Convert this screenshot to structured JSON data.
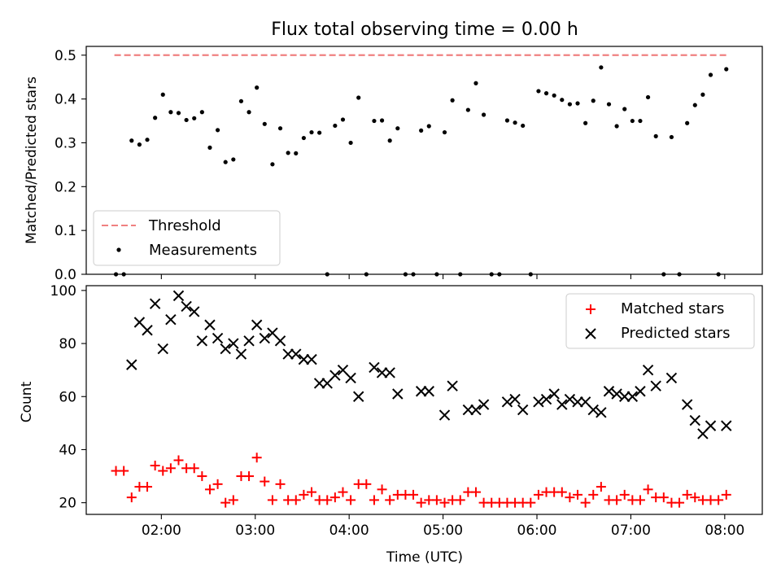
{
  "chart_data": [
    {
      "type": "scatter",
      "title": "Flux total observing time = 0.00 h",
      "xlabel": "",
      "ylabel": "Matched/Predicted stars",
      "xlim": [
        "01:12",
        "08:24"
      ],
      "ylim": [
        0,
        0.52
      ],
      "xticks": [
        "02:00",
        "03:00",
        "04:00",
        "05:00",
        "06:00",
        "07:00",
        "08:00"
      ],
      "yticks": [
        0.0,
        0.1,
        0.2,
        0.3,
        0.4,
        0.5
      ],
      "yticks_labels": [
        "0.0",
        "0.1",
        "0.2",
        "0.3",
        "0.4",
        "0.5"
      ],
      "legend_position": "lower-left",
      "series": [
        {
          "name": "Threshold",
          "style": "dashed-line",
          "color": "#f08080",
          "x": [
            "01:30",
            "08:02"
          ],
          "y": [
            0.5,
            0.5
          ]
        },
        {
          "name": "Measurements",
          "style": "dot",
          "color": "#000000",
          "x": [
            "01:31",
            "01:36",
            "01:41",
            "01:46",
            "01:51",
            "01:56",
            "02:01",
            "02:06",
            "02:11",
            "02:16",
            "02:21",
            "02:26",
            "02:31",
            "02:36",
            "02:41",
            "02:46",
            "02:51",
            "02:56",
            "03:01",
            "03:06",
            "03:11",
            "03:16",
            "03:21",
            "03:26",
            "03:31",
            "03:36",
            "03:41",
            "03:46",
            "03:51",
            "03:56",
            "04:01",
            "04:06",
            "04:11",
            "04:16",
            "04:21",
            "04:26",
            "04:31",
            "04:36",
            "04:41",
            "04:46",
            "04:51",
            "04:56",
            "05:01",
            "05:06",
            "05:11",
            "05:16",
            "05:21",
            "05:26",
            "05:31",
            "05:36",
            "05:41",
            "05:46",
            "05:51",
            "05:56",
            "06:01",
            "06:06",
            "06:11",
            "06:16",
            "06:21",
            "06:26",
            "06:31",
            "06:36",
            "06:41",
            "06:46",
            "06:51",
            "06:56",
            "07:01",
            "07:06",
            "07:11",
            "07:16",
            "07:21",
            "07:26",
            "07:31",
            "07:36",
            "07:41",
            "07:46",
            "07:51",
            "07:56",
            "08:01"
          ],
          "y": [
            0.0,
            0.0,
            0.305,
            0.296,
            0.307,
            0.357,
            0.41,
            0.37,
            0.368,
            0.352,
            0.356,
            0.37,
            0.289,
            0.329,
            0.256,
            0.262,
            0.395,
            0.37,
            0.426,
            0.343,
            0.251,
            0.333,
            0.277,
            0.276,
            0.311,
            0.324,
            0.323,
            0.0,
            0.339,
            0.353,
            0.3,
            0.403,
            0.0,
            0.35,
            0.351,
            0.305,
            0.333,
            0.0,
            0.0,
            0.328,
            0.338,
            0.0,
            0.324,
            0.397,
            0.0,
            0.375,
            0.436,
            0.364,
            0.0,
            0.0,
            0.351,
            0.346,
            0.339,
            0.0,
            0.418,
            0.413,
            0.408,
            0.398,
            0.388,
            0.39,
            0.345,
            0.396,
            0.472,
            0.388,
            0.338,
            0.377,
            0.35,
            0.35,
            0.404,
            0.315,
            0.0,
            0.313,
            0.0,
            0.345,
            0.386,
            0.41,
            0.455,
            0.0,
            0.468
          ]
        }
      ]
    },
    {
      "type": "scatter",
      "title": "",
      "xlabel": "Time (UTC)",
      "ylabel": "Count",
      "xlim": [
        "01:12",
        "08:24"
      ],
      "ylim": [
        15.6,
        101.8
      ],
      "xticks": [
        "02:00",
        "03:00",
        "04:00",
        "05:00",
        "06:00",
        "07:00",
        "08:00"
      ],
      "yticks": [
        20,
        40,
        60,
        80,
        100
      ],
      "legend_position": "upper-right",
      "series": [
        {
          "name": "Matched stars",
          "marker": "plus",
          "color": "#ff0000",
          "x": [
            "01:31",
            "01:36",
            "01:41",
            "01:46",
            "01:51",
            "01:56",
            "02:01",
            "02:06",
            "02:11",
            "02:16",
            "02:21",
            "02:26",
            "02:31",
            "02:36",
            "02:41",
            "02:46",
            "02:51",
            "02:56",
            "03:01",
            "03:06",
            "03:11",
            "03:16",
            "03:21",
            "03:26",
            "03:31",
            "03:36",
            "03:41",
            "03:46",
            "03:51",
            "03:56",
            "04:01",
            "04:06",
            "04:11",
            "04:16",
            "04:21",
            "04:26",
            "04:31",
            "04:36",
            "04:41",
            "04:46",
            "04:51",
            "04:56",
            "05:01",
            "05:06",
            "05:11",
            "05:16",
            "05:21",
            "05:26",
            "05:31",
            "05:36",
            "05:41",
            "05:46",
            "05:51",
            "05:56",
            "06:01",
            "06:06",
            "06:11",
            "06:16",
            "06:21",
            "06:26",
            "06:31",
            "06:36",
            "06:41",
            "06:46",
            "06:51",
            "06:56",
            "07:01",
            "07:06",
            "07:11",
            "07:16",
            "07:21",
            "07:26",
            "07:31",
            "07:36",
            "07:41",
            "07:46",
            "07:51",
            "07:56",
            "08:01"
          ],
          "y": [
            32,
            32,
            22,
            26,
            26,
            34,
            32,
            33,
            36,
            33,
            33,
            30,
            25,
            27,
            20,
            21,
            30,
            30,
            37,
            28,
            21,
            27,
            21,
            21,
            23,
            24,
            21,
            21,
            22,
            24,
            21,
            27,
            27,
            21,
            25,
            21,
            23,
            23,
            23,
            20,
            21,
            21,
            20,
            21,
            21,
            24,
            24,
            20,
            20,
            20,
            20,
            20,
            20,
            20,
            23,
            24,
            24,
            24,
            22,
            23,
            20,
            23,
            26,
            21,
            21,
            23,
            21,
            21,
            25,
            22,
            22,
            20,
            20,
            23,
            22,
            21,
            21,
            21,
            23
          ]
        },
        {
          "name": "Predicted stars",
          "marker": "x",
          "color": "#000000",
          "x": [
            "01:41",
            "01:46",
            "01:51",
            "01:56",
            "02:01",
            "02:06",
            "02:11",
            "02:16",
            "02:21",
            "02:26",
            "02:31",
            "02:36",
            "02:41",
            "02:46",
            "02:51",
            "02:56",
            "03:01",
            "03:06",
            "03:11",
            "03:16",
            "03:21",
            "03:26",
            "03:31",
            "03:36",
            "03:41",
            "03:46",
            "03:51",
            "03:56",
            "04:01",
            "04:06",
            "04:16",
            "04:21",
            "04:26",
            "04:31",
            "04:46",
            "04:51",
            "05:01",
            "05:06",
            "05:16",
            "05:21",
            "05:26",
            "05:41",
            "05:46",
            "05:51",
            "06:01",
            "06:06",
            "06:11",
            "06:16",
            "06:21",
            "06:26",
            "06:31",
            "06:36",
            "06:41",
            "06:46",
            "06:51",
            "06:56",
            "07:01",
            "07:06",
            "07:11",
            "07:16",
            "07:26",
            "07:36",
            "07:41",
            "07:46",
            "07:51",
            "08:01"
          ],
          "y": [
            72,
            88,
            85,
            95,
            78,
            89,
            98,
            94,
            92,
            81,
            87,
            82,
            78,
            80,
            76,
            81,
            87,
            82,
            84,
            81,
            76,
            76,
            74,
            74,
            65,
            65,
            68,
            70,
            67,
            60,
            71,
            69,
            69,
            61,
            62,
            62,
            53,
            64,
            55,
            55,
            57,
            58,
            59,
            55,
            58,
            59,
            61,
            57,
            59,
            58,
            58,
            55,
            54,
            62,
            61,
            60,
            60,
            62,
            70,
            64,
            67,
            57,
            51,
            46,
            49,
            49
          ]
        }
      ]
    }
  ]
}
